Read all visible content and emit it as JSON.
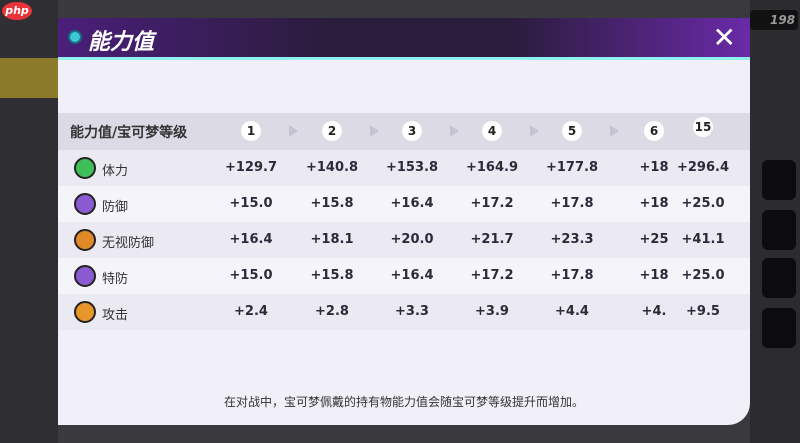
{
  "brand": {
    "watermark": "php"
  },
  "currency": {
    "value": "198"
  },
  "modal": {
    "title": "能力值",
    "close_label": "✕"
  },
  "table": {
    "header_label": "能力值/宝可梦等级",
    "levels": [
      "1",
      "2",
      "3",
      "4",
      "5",
      "6",
      "15"
    ],
    "rows": [
      {
        "name": "体力",
        "icon": "hp-icon",
        "color": "#3fbf5a",
        "values": [
          "+129.7",
          "+140.8",
          "+153.8",
          "+164.9",
          "+177.8",
          "+18",
          "+296.4"
        ]
      },
      {
        "name": "防御",
        "icon": "defense-icon",
        "color": "#8a5ad0",
        "values": [
          "+15.0",
          "+15.8",
          "+16.4",
          "+17.2",
          "+17.8",
          "+18",
          "+25.0"
        ]
      },
      {
        "name": "无视防御",
        "icon": "armor-pierce-icon",
        "color": "#e08a2a",
        "values": [
          "+16.4",
          "+18.1",
          "+20.0",
          "+21.7",
          "+23.3",
          "+25",
          "+41.1"
        ]
      },
      {
        "name": "特防",
        "icon": "sp-defense-icon",
        "color": "#8a5ad0",
        "values": [
          "+15.0",
          "+15.8",
          "+16.4",
          "+17.2",
          "+17.8",
          "+18",
          "+25.0"
        ]
      },
      {
        "name": "攻击",
        "icon": "attack-icon",
        "color": "#e8952a",
        "values": [
          "+2.4",
          "+2.8",
          "+3.3",
          "+3.9",
          "+4.4",
          "+4.",
          "+9.5"
        ]
      }
    ]
  },
  "footer": "在对战中，宝可梦佩戴的持有物能力值会随宝可梦等级提升而增加。"
}
